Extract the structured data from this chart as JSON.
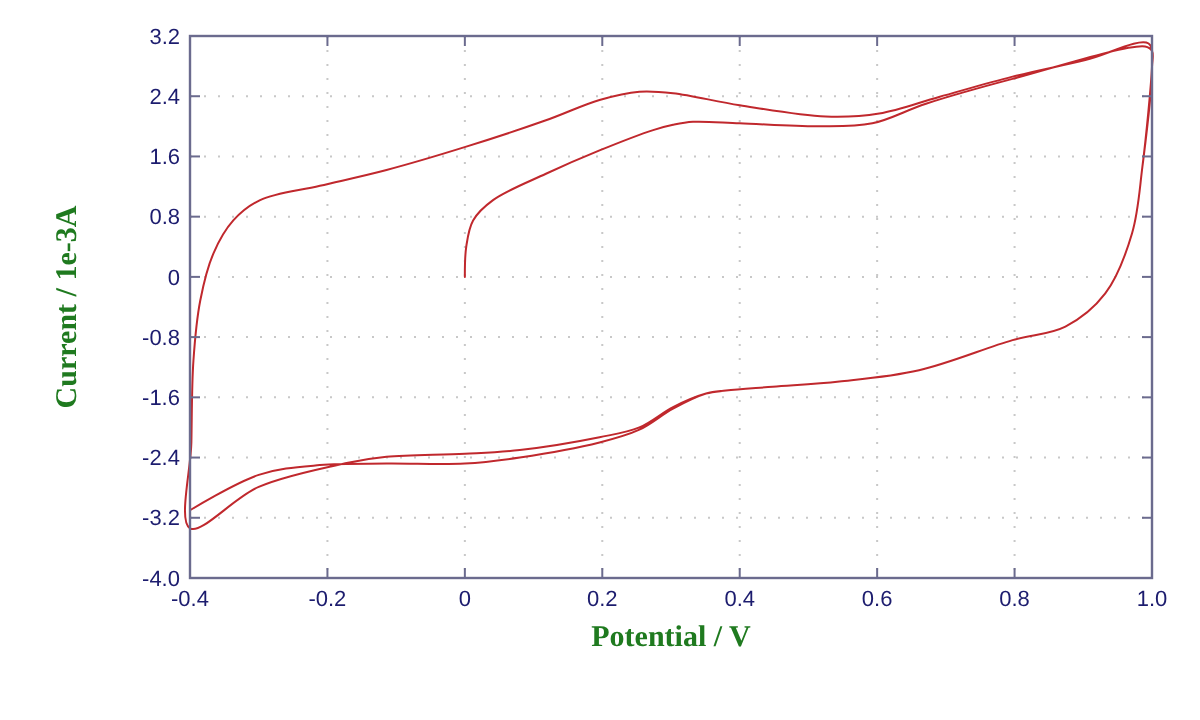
{
  "chart_data": {
    "type": "line",
    "xlabel": "Potential / V",
    "ylabel": "Current / 1e-3A",
    "xlim": [
      -0.4,
      1.0
    ],
    "xticks": [
      -0.4,
      -0.2,
      0,
      0.2,
      0.4,
      0.6,
      0.8,
      {
        "value": 1.0,
        "label": "1.0"
      }
    ],
    "ylim": [
      -4.0,
      3.2
    ],
    "yticks": [
      {
        "value": -4.0,
        "label": "-4.0"
      },
      -3.2,
      -2.4,
      -1.6,
      -0.8,
      0,
      0.8,
      1.6,
      2.4,
      3.2
    ],
    "grid": true,
    "marker": "none",
    "line_style": "solid",
    "series": [
      {
        "color": "#c0282d",
        "x": [
          0.0,
          0.002,
          0.012,
          0.041,
          0.118,
          0.196,
          0.274,
          0.303,
          0.332,
          0.4,
          0.516,
          0.593,
          0.671,
          0.797,
          0.99,
          1.0,
          1.0,
          0.986,
          0.971,
          0.932,
          0.874,
          0.797,
          0.661,
          0.545,
          0.448,
          0.38,
          0.351,
          0.303,
          0.254,
          0.196,
          0.08,
          0.0,
          -0.114,
          -0.17,
          -0.3,
          -0.4,
          -0.398,
          -0.395,
          -0.385,
          -0.366,
          -0.337,
          -0.298,
          -0.211,
          -0.114,
          0.002,
          0.118,
          0.196,
          0.254,
          0.303,
          0.4,
          0.525,
          0.603,
          0.69,
          0.797,
          0.903,
          0.995,
          1.0,
          0.986,
          0.971,
          0.932,
          0.874,
          0.797,
          0.661,
          0.545,
          0.448,
          0.38,
          0.351,
          0.303,
          0.254,
          0.196,
          0.08,
          0.0,
          -0.114,
          -0.211,
          -0.3,
          -0.4
        ],
        "values": [
          0.0,
          0.4,
          0.75,
          1.02,
          1.37,
          1.68,
          1.95,
          2.02,
          2.06,
          2.04,
          2.0,
          2.04,
          2.3,
          2.63,
          3.06,
          3.0,
          2.79,
          1.46,
          0.58,
          -0.22,
          -0.66,
          -0.84,
          -1.24,
          -1.39,
          -1.46,
          -1.51,
          -1.55,
          -1.73,
          -2.0,
          -2.13,
          -2.3,
          -2.35,
          -2.39,
          -2.47,
          -2.79,
          -3.34,
          -2.2,
          -1.11,
          -0.31,
          0.31,
          0.75,
          1.02,
          1.21,
          1.42,
          1.73,
          2.08,
          2.35,
          2.46,
          2.44,
          2.28,
          2.13,
          2.17,
          2.39,
          2.66,
          2.88,
          3.1,
          2.79,
          1.46,
          0.58,
          -0.22,
          -0.66,
          -0.84,
          -1.24,
          -1.39,
          -1.46,
          -1.51,
          -1.55,
          -1.75,
          -2.03,
          -2.2,
          -2.4,
          -2.48,
          -2.48,
          -2.5,
          -2.63,
          -3.1
        ]
      }
    ]
  }
}
